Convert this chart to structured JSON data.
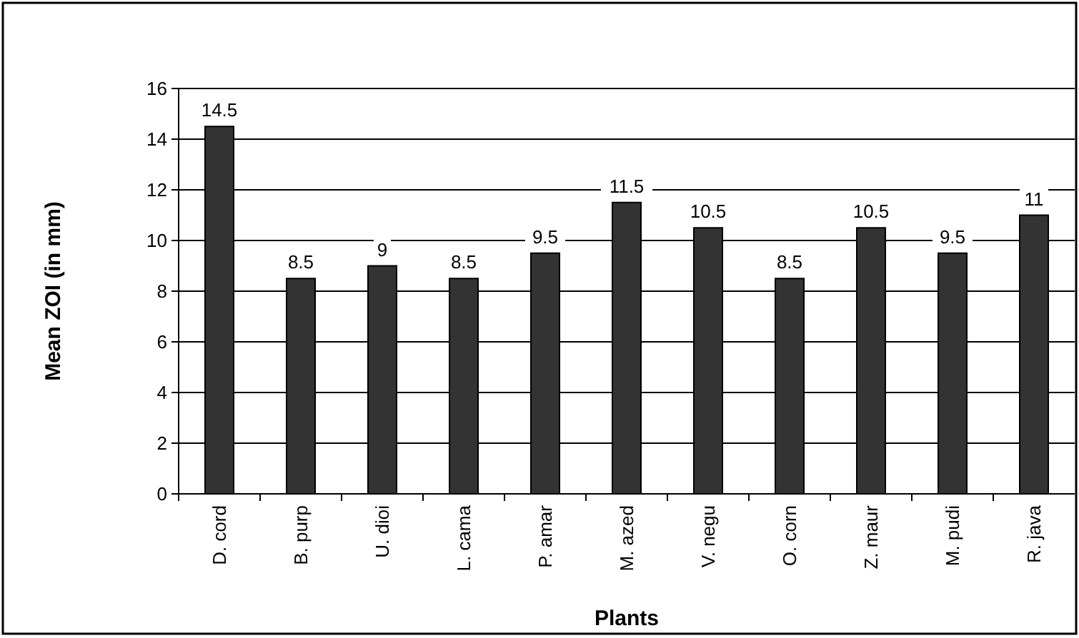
{
  "chart_data": {
    "type": "bar",
    "xlabel": "Plants",
    "ylabel": "Mean ZOI (in mm)",
    "categories": [
      "D. cord",
      "B. purp",
      "U. dioi",
      "L. cama",
      "P. amar",
      "M. azed",
      "V. negu",
      "O. corn",
      "Z. maur",
      "M. pudi",
      "R. java"
    ],
    "values": [
      14.5,
      8.5,
      9,
      8.5,
      9.5,
      11.5,
      10.5,
      8.5,
      10.5,
      9.5,
      11
    ],
    "color": "#333333",
    "ylim": [
      0,
      16
    ],
    "yticks": [
      0,
      2,
      4,
      6,
      8,
      10,
      12,
      14,
      16
    ],
    "grid": "y",
    "data_labels": true
  }
}
